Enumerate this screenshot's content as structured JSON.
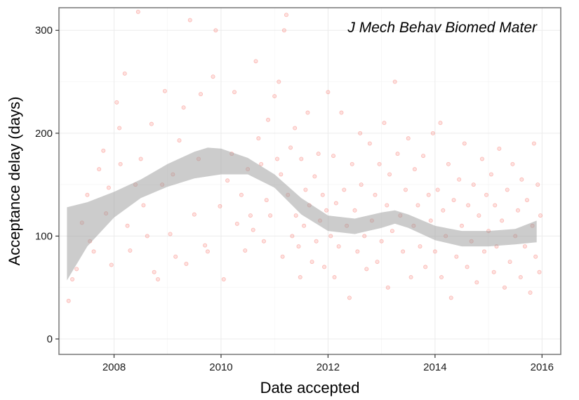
{
  "chart_data": {
    "type": "scatter",
    "annotation": "J Mech Behav Biomed Mater",
    "xlabel": "Date accepted",
    "ylabel": "Acceptance delay (days)",
    "xlim": [
      2006.97,
      2016.35
    ],
    "ylim": [
      -15,
      322
    ],
    "x_ticks": [
      2008,
      2010,
      2012,
      2014,
      2016
    ],
    "y_ticks": [
      0,
      100,
      200,
      300
    ],
    "grid": true,
    "legend": "none",
    "point_color": "#f8766d",
    "smooth_color": "#999999",
    "points": [
      [
        2007.15,
        37
      ],
      [
        2007.22,
        58
      ],
      [
        2007.3,
        68
      ],
      [
        2007.4,
        113
      ],
      [
        2007.5,
        140
      ],
      [
        2007.55,
        95
      ],
      [
        2007.62,
        85
      ],
      [
        2007.72,
        165
      ],
      [
        2007.8,
        183
      ],
      [
        2007.85,
        122
      ],
      [
        2007.9,
        147
      ],
      [
        2007.95,
        72
      ],
      [
        2008.05,
        230
      ],
      [
        2008.1,
        205
      ],
      [
        2008.12,
        170
      ],
      [
        2008.2,
        258
      ],
      [
        2008.25,
        110
      ],
      [
        2008.3,
        86
      ],
      [
        2008.4,
        150
      ],
      [
        2008.45,
        318
      ],
      [
        2008.5,
        175
      ],
      [
        2008.55,
        130
      ],
      [
        2008.62,
        100
      ],
      [
        2008.7,
        209
      ],
      [
        2008.75,
        65
      ],
      [
        2008.82,
        58
      ],
      [
        2008.9,
        150
      ],
      [
        2008.95,
        241
      ],
      [
        2009.05,
        102
      ],
      [
        2009.1,
        160
      ],
      [
        2009.15,
        80
      ],
      [
        2009.22,
        193
      ],
      [
        2009.3,
        225
      ],
      [
        2009.35,
        73
      ],
      [
        2009.42,
        310
      ],
      [
        2009.5,
        121
      ],
      [
        2009.58,
        175
      ],
      [
        2009.62,
        238
      ],
      [
        2009.7,
        91
      ],
      [
        2009.75,
        85
      ],
      [
        2009.85,
        255
      ],
      [
        2009.9,
        300
      ],
      [
        2009.98,
        129
      ],
      [
        2010.05,
        58
      ],
      [
        2010.12,
        154
      ],
      [
        2010.2,
        180
      ],
      [
        2010.25,
        240
      ],
      [
        2010.3,
        112
      ],
      [
        2010.38,
        140
      ],
      [
        2010.45,
        86
      ],
      [
        2010.5,
        165
      ],
      [
        2010.55,
        120
      ],
      [
        2010.6,
        106
      ],
      [
        2010.65,
        270
      ],
      [
        2010.7,
        195
      ],
      [
        2010.75,
        170
      ],
      [
        2010.8,
        95
      ],
      [
        2010.85,
        135
      ],
      [
        2010.88,
        213
      ],
      [
        2010.92,
        120
      ],
      [
        2011.0,
        236
      ],
      [
        2011.05,
        175
      ],
      [
        2011.08,
        250
      ],
      [
        2011.12,
        160
      ],
      [
        2011.15,
        80
      ],
      [
        2011.18,
        300
      ],
      [
        2011.22,
        315
      ],
      [
        2011.25,
        140
      ],
      [
        2011.3,
        186
      ],
      [
        2011.33,
        100
      ],
      [
        2011.38,
        205
      ],
      [
        2011.4,
        120
      ],
      [
        2011.45,
        90
      ],
      [
        2011.48,
        60
      ],
      [
        2011.5,
        175
      ],
      [
        2011.55,
        110
      ],
      [
        2011.58,
        145
      ],
      [
        2011.62,
        220
      ],
      [
        2011.65,
        130
      ],
      [
        2011.7,
        75
      ],
      [
        2011.75,
        158
      ],
      [
        2011.78,
        95
      ],
      [
        2011.82,
        180
      ],
      [
        2011.85,
        115
      ],
      [
        2011.9,
        140
      ],
      [
        2011.93,
        70
      ],
      [
        2011.97,
        125
      ],
      [
        2012.0,
        240
      ],
      [
        2012.05,
        100
      ],
      [
        2012.1,
        178
      ],
      [
        2012.12,
        60
      ],
      [
        2012.15,
        132
      ],
      [
        2012.2,
        90
      ],
      [
        2012.25,
        220
      ],
      [
        2012.3,
        145
      ],
      [
        2012.35,
        110
      ],
      [
        2012.4,
        40
      ],
      [
        2012.45,
        170
      ],
      [
        2012.5,
        125
      ],
      [
        2012.55,
        85
      ],
      [
        2012.6,
        200
      ],
      [
        2012.62,
        150
      ],
      [
        2012.68,
        100
      ],
      [
        2012.72,
        68
      ],
      [
        2012.78,
        190
      ],
      [
        2012.82,
        115
      ],
      [
        2012.88,
        140
      ],
      [
        2012.92,
        75
      ],
      [
        2012.96,
        170
      ],
      [
        2013.0,
        95
      ],
      [
        2013.05,
        210
      ],
      [
        2013.1,
        130
      ],
      [
        2013.12,
        50
      ],
      [
        2013.15,
        160
      ],
      [
        2013.2,
        105
      ],
      [
        2013.25,
        250
      ],
      [
        2013.3,
        180
      ],
      [
        2013.35,
        120
      ],
      [
        2013.4,
        85
      ],
      [
        2013.45,
        145
      ],
      [
        2013.5,
        195
      ],
      [
        2013.55,
        60
      ],
      [
        2013.6,
        110
      ],
      [
        2013.62,
        165
      ],
      [
        2013.68,
        130
      ],
      [
        2013.72,
        90
      ],
      [
        2013.78,
        178
      ],
      [
        2013.82,
        70
      ],
      [
        2013.88,
        140
      ],
      [
        2013.92,
        115
      ],
      [
        2013.96,
        200
      ],
      [
        2014.0,
        85
      ],
      [
        2014.05,
        145
      ],
      [
        2014.1,
        210
      ],
      [
        2014.12,
        60
      ],
      [
        2014.15,
        125
      ],
      [
        2014.2,
        100
      ],
      [
        2014.25,
        170
      ],
      [
        2014.3,
        40
      ],
      [
        2014.35,
        135
      ],
      [
        2014.4,
        80
      ],
      [
        2014.45,
        155
      ],
      [
        2014.5,
        110
      ],
      [
        2014.55,
        190
      ],
      [
        2014.6,
        70
      ],
      [
        2014.62,
        130
      ],
      [
        2014.68,
        95
      ],
      [
        2014.72,
        150
      ],
      [
        2014.78,
        55
      ],
      [
        2014.82,
        120
      ],
      [
        2014.88,
        175
      ],
      [
        2014.92,
        85
      ],
      [
        2014.96,
        140
      ],
      [
        2015.0,
        105
      ],
      [
        2015.05,
        160
      ],
      [
        2015.1,
        65
      ],
      [
        2015.12,
        130
      ],
      [
        2015.15,
        90
      ],
      [
        2015.2,
        185
      ],
      [
        2015.25,
        115
      ],
      [
        2015.3,
        50
      ],
      [
        2015.35,
        145
      ],
      [
        2015.4,
        75
      ],
      [
        2015.45,
        170
      ],
      [
        2015.5,
        100
      ],
      [
        2015.55,
        125
      ],
      [
        2015.6,
        60
      ],
      [
        2015.62,
        155
      ],
      [
        2015.68,
        90
      ],
      [
        2015.72,
        135
      ],
      [
        2015.78,
        45
      ],
      [
        2015.82,
        110
      ],
      [
        2015.85,
        190
      ],
      [
        2015.88,
        80
      ],
      [
        2015.92,
        150
      ],
      [
        2015.95,
        65
      ],
      [
        2015.97,
        120
      ]
    ],
    "smooth_band": {
      "x": [
        2007.12,
        2007.5,
        2008.0,
        2008.5,
        2009.0,
        2009.5,
        2009.75,
        2010.0,
        2010.5,
        2011.0,
        2011.5,
        2012.0,
        2012.5,
        2013.0,
        2013.25,
        2013.5,
        2014.0,
        2014.5,
        2015.0,
        2015.5,
        2015.9
      ],
      "upper": [
        128,
        133,
        143,
        155,
        170,
        182,
        186,
        185,
        176,
        160,
        137,
        120,
        117,
        123,
        125,
        121,
        110,
        105,
        105,
        107,
        115
      ],
      "lower": [
        57,
        90,
        118,
        137,
        148,
        156,
        158,
        160,
        160,
        147,
        121,
        105,
        102,
        108,
        112,
        108,
        96,
        90,
        90,
        92,
        94
      ]
    }
  }
}
